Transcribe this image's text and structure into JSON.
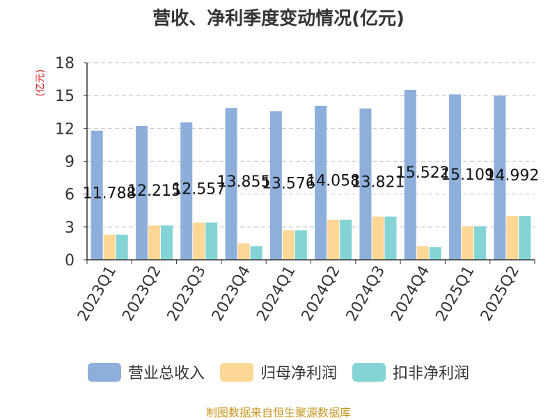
{
  "chart_data": {
    "type": "bar",
    "title": "营收、净利季度变动情况(亿元)",
    "ylabel": "(亿元)",
    "ylim": [
      0,
      18
    ],
    "yticks": [
      0,
      3,
      6,
      9,
      12,
      15,
      18
    ],
    "grid": true,
    "legend_position": "bottom",
    "categories": [
      "2023Q1",
      "2023Q2",
      "2023Q3",
      "2023Q4",
      "2024Q1",
      "2024Q2",
      "2024Q3",
      "2024Q4",
      "2025Q1",
      "2025Q2"
    ],
    "series": [
      {
        "name": "营业总收入",
        "color": "#8eaedb",
        "values": [
          11.788,
          12.215,
          12.557,
          13.855,
          13.576,
          14.058,
          13.821,
          15.522,
          15.109,
          14.992
        ],
        "labels": [
          "11.788",
          "12.215",
          "12.557",
          "13.855",
          "13.576",
          "14.058",
          "13.821",
          "15.522",
          "15.109",
          "14.992"
        ]
      },
      {
        "name": "归母净利润",
        "color": "#fdd795",
        "values": [
          2.3,
          3.15,
          3.4,
          1.5,
          2.7,
          3.65,
          3.95,
          1.25,
          3.05,
          4.0
        ]
      },
      {
        "name": "扣非净利润",
        "color": "#84d4d6",
        "values": [
          2.3,
          3.15,
          3.4,
          1.25,
          2.7,
          3.65,
          3.95,
          1.15,
          3.05,
          4.0
        ]
      }
    ]
  },
  "source": "制图数据来自恒生聚源数据库"
}
